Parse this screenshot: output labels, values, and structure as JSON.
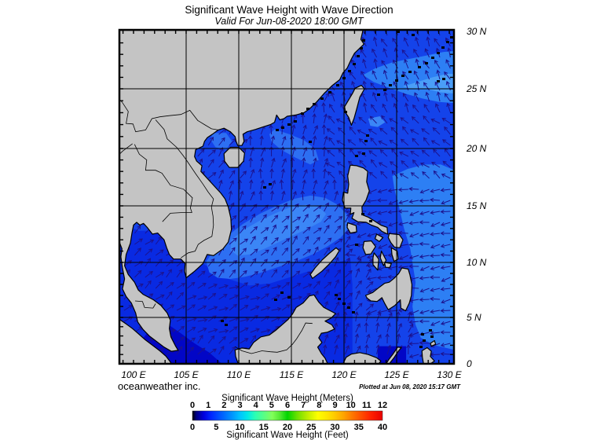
{
  "header": {
    "title": "Significant Wave Height with Wave Direction",
    "subtitle": "Valid For Jun-08-2020 18:00 GMT"
  },
  "footer": {
    "credit": "oceanweather inc.",
    "plotted": "Plotted at Jun 08, 2020 15:17 GMT"
  },
  "axes": {
    "x_tick_labels": [
      "100 E",
      "105 E",
      "110 E",
      "115 E",
      "120 E",
      "125 E",
      "130 E"
    ],
    "x_tick_lons": [
      100,
      105,
      110,
      115,
      120,
      125,
      130
    ],
    "y_tick_labels": [
      "30 N",
      "25 N",
      "20 N",
      "15 N",
      "10 N",
      "5 N",
      "0"
    ],
    "y_tick_lats": [
      30,
      25,
      20,
      15,
      10,
      5,
      0
    ],
    "grid_lons": [
      105,
      110,
      115,
      120,
      125
    ],
    "grid_lats": [
      5,
      10,
      15,
      20,
      25
    ]
  },
  "legend": {
    "meters_label": "Significant Wave Height (Meters)",
    "feet_label": "Significant Wave Height (Feet)",
    "meters_ticks": [
      0,
      1,
      2,
      3,
      4,
      5,
      6,
      7,
      8,
      9,
      10,
      11,
      12
    ],
    "feet_ticks": [
      0,
      5,
      10,
      15,
      20,
      25,
      30,
      35,
      40
    ]
  },
  "colors": {
    "land": "#c4c4c4",
    "coastline": "#000000",
    "ocean_base": "#1443ea",
    "ocean_bright": "#092ae2",
    "ocean_dark": "#0206c6",
    "ocean_light": "#2d6ff2",
    "ocean_mlight": "#3b86f6",
    "ocean_pacific_light": "#2d7ff4",
    "ocean_lightest": "#4a9ef7",
    "arrow": "#1c128e",
    "grid": "#000000",
    "plotted_text": "#0000bb"
  },
  "colorbar_stops": [
    [
      0,
      "#000000"
    ],
    [
      2,
      "#000080"
    ],
    [
      6,
      "#0000e0"
    ],
    [
      10,
      "#0028ff"
    ],
    [
      16,
      "#0064ff"
    ],
    [
      21,
      "#0096ff"
    ],
    [
      25,
      "#00c3ff"
    ],
    [
      29,
      "#00e8e8"
    ],
    [
      33,
      "#2affb4"
    ],
    [
      38,
      "#5cff82"
    ],
    [
      42,
      "#82ff5a"
    ],
    [
      46,
      "#52e932"
    ],
    [
      50,
      "#00d500"
    ],
    [
      55,
      "#6ae000"
    ],
    [
      60,
      "#b7ec00"
    ],
    [
      66,
      "#ffff00"
    ],
    [
      71,
      "#ffe400"
    ],
    [
      75,
      "#ffc800"
    ],
    [
      80,
      "#ffa000"
    ],
    [
      84,
      "#ff7800"
    ],
    [
      89,
      "#ff4c00"
    ],
    [
      94,
      "#ff2000"
    ],
    [
      100,
      "#e80000"
    ]
  ],
  "chart_data": {
    "type": "map",
    "title": "Significant Wave Height with Wave Direction",
    "valid_time": "Jun-08-2020 18:00 GMT",
    "plotted_time": "Jun 08, 2020 15:17 GMT",
    "region": "South China Sea and Western Pacific",
    "lon_range_deg_e": [
      98.7,
      130.5
    ],
    "lat_range_deg_n": [
      0,
      30.1
    ],
    "grid_interval_deg": 5,
    "colorbar_range_m": [
      0,
      12
    ],
    "colorbar_range_ft": [
      0,
      40
    ],
    "arrow_grid_spacing_deg": 1,
    "wave_height_bands": [
      {
        "color_key": "ocean_dark",
        "height_m": "0.5-1.0",
        "areas": "Strait of Malacca / Karimata Strait; Molucca Sea"
      },
      {
        "color_key": "ocean_bright",
        "height_m": "1.0-1.5",
        "areas": "southern South China Sea, Gulf of Thailand, Andaman coast"
      },
      {
        "color_key": "ocean_base",
        "height_m": "~1.5",
        "areas": "northern South China Sea, coastal Philippine Sea, Sulu and Celebes Seas, East China Sea"
      },
      {
        "color_key": "ocean_light",
        "height_m": "1.5-2.0",
        "areas": "central South China Sea band from Mekong Delta toward Luzon; tongue off south China coast; northern Gulf of Tonkin"
      },
      {
        "color_key": "ocean_mlight",
        "height_m": "~2.0",
        "areas": "core of central South China Sea band; patch east of Taiwan"
      },
      {
        "color_key": "ocean_pacific_light",
        "height_m": "2.0-2.5",
        "areas": "open Philippine Sea east of 125E; Ryukyu Islands area"
      },
      {
        "color_key": "ocean_lightest",
        "height_m": "~2.5",
        "areas": "Philippine Sea near 25N-26N east of 126E"
      }
    ],
    "shade_regions": [
      {
        "name": "southern-scs-bright",
        "color_key": "ocean_bright",
        "points": [
          [
            98.66,
            13.8
          ],
          [
            99.5,
            13.2
          ],
          [
            100.5,
            12.8
          ],
          [
            101.5,
            12.8
          ],
          [
            102.5,
            12.5
          ],
          [
            104,
            11.5
          ],
          [
            106,
            10.3
          ],
          [
            107.5,
            9.3
          ],
          [
            109,
            8.5
          ],
          [
            111,
            7.9
          ],
          [
            113,
            8.1
          ],
          [
            115,
            8.7
          ],
          [
            117,
            9.3
          ],
          [
            119,
            9.9
          ],
          [
            120.6,
            10.3
          ],
          [
            120.8,
            8
          ],
          [
            120.8,
            0
          ],
          [
            98.66,
            0
          ]
        ]
      },
      {
        "name": "malacca-dark",
        "color_key": "ocean_dark",
        "points": [
          [
            102.4,
            4.8
          ],
          [
            103.6,
            4
          ],
          [
            104.6,
            3.2
          ],
          [
            105.8,
            2.2
          ],
          [
            107.2,
            1.2
          ],
          [
            108.4,
            0
          ],
          [
            99.5,
            0
          ],
          [
            100,
            1.5
          ],
          [
            100.8,
            2.6
          ],
          [
            101.6,
            3.7
          ]
        ]
      },
      {
        "name": "molucca-dark",
        "color_key": "ocean_dark",
        "points": [
          [
            123.2,
            1.9
          ],
          [
            125.9,
            1.9
          ],
          [
            125.9,
            0
          ],
          [
            123.2,
            0
          ]
        ]
      },
      {
        "name": "central-band-light",
        "color_key": "ocean_light",
        "points": [
          [
            106.9,
            10.1
          ],
          [
            107.9,
            11.4
          ],
          [
            109,
            12.4
          ],
          [
            110.4,
            13.4
          ],
          [
            112,
            14.3
          ],
          [
            113.6,
            15
          ],
          [
            115.2,
            15.6
          ],
          [
            116.8,
            15.9
          ],
          [
            118.2,
            15.7
          ],
          [
            119.4,
            15.1
          ],
          [
            120.3,
            14.2
          ],
          [
            120.5,
            13.1
          ],
          [
            119.7,
            12.2
          ],
          [
            118.4,
            11.4
          ],
          [
            117,
            10.7
          ],
          [
            115.4,
            10.1
          ],
          [
            113.8,
            9.6
          ],
          [
            112.2,
            9.1
          ],
          [
            110.6,
            8.7
          ],
          [
            109.2,
            8.5
          ],
          [
            108,
            8.6
          ],
          [
            107.2,
            9.1
          ]
        ]
      },
      {
        "name": "central-band-core",
        "color_key": "ocean_mlight",
        "points": [
          [
            109.3,
            12
          ],
          [
            110.5,
            12.9
          ],
          [
            112,
            13.7
          ],
          [
            113.6,
            14.4
          ],
          [
            115,
            14.9
          ],
          [
            116.4,
            15.1
          ],
          [
            117.6,
            14.9
          ],
          [
            118.3,
            14.3
          ],
          [
            117.8,
            13.6
          ],
          [
            116.6,
            13
          ],
          [
            115.2,
            12.4
          ],
          [
            113.8,
            11.8
          ],
          [
            112.4,
            11.2
          ],
          [
            111,
            10.7
          ],
          [
            109.9,
            10.6
          ],
          [
            109.2,
            11.1
          ]
        ]
      },
      {
        "name": "nscs-tongue",
        "color_key": "ocean_light",
        "points": [
          [
            113.4,
            21.6
          ],
          [
            114.8,
            21.2
          ],
          [
            116.2,
            20.7
          ],
          [
            117.3,
            19.9
          ],
          [
            117.6,
            19
          ],
          [
            116.8,
            18.6
          ],
          [
            115.4,
            19.2
          ],
          [
            114,
            19.9
          ],
          [
            113.1,
            20.6
          ],
          [
            112.9,
            21.2
          ]
        ]
      },
      {
        "name": "tonkin-patch",
        "color_key": "ocean_light",
        "points": [
          [
            107.5,
            21.3
          ],
          [
            108.8,
            21.3
          ],
          [
            109.35,
            20.6
          ],
          [
            108.8,
            19.9
          ],
          [
            107.8,
            20.1
          ],
          [
            107.35,
            20.7
          ]
        ]
      },
      {
        "name": "pacific-light",
        "color_key": "ocean_pacific_light",
        "points": [
          [
            124.6,
            17.6
          ],
          [
            126,
            18.2
          ],
          [
            127.6,
            18.6
          ],
          [
            129.2,
            18.6
          ],
          [
            130.5,
            18.1
          ],
          [
            130.5,
            1.5
          ],
          [
            128.6,
            2
          ],
          [
            127.3,
            2.8
          ],
          [
            126.8,
            4.2
          ],
          [
            126.5,
            6
          ],
          [
            126.8,
            8.2
          ],
          [
            126.3,
            11.2
          ],
          [
            125.7,
            13
          ],
          [
            125.2,
            15
          ],
          [
            124.8,
            16.4
          ]
        ]
      },
      {
        "name": "ryukyu-light",
        "color_key": "ocean_pacific_light",
        "points": [
          [
            121.8,
            26.2
          ],
          [
            123,
            26.8
          ],
          [
            124.6,
            27.3
          ],
          [
            126.2,
            27.6
          ],
          [
            127.8,
            27.9
          ],
          [
            129.4,
            28.2
          ],
          [
            130.5,
            28.3
          ],
          [
            130.5,
            23.8
          ],
          [
            129,
            23.9
          ],
          [
            127.4,
            24.2
          ],
          [
            125.8,
            24.6
          ],
          [
            124.2,
            25.1
          ],
          [
            122.8,
            25.6
          ]
        ]
      },
      {
        "name": "ryukyu-lightest",
        "color_key": "ocean_lightest",
        "points": [
          [
            125.6,
            25.2
          ],
          [
            127,
            25.6
          ],
          [
            128.4,
            26
          ],
          [
            129.8,
            26.3
          ],
          [
            130.5,
            26.3
          ],
          [
            130.5,
            24.6
          ],
          [
            129.2,
            24.7
          ],
          [
            127.8,
            25
          ],
          [
            126.4,
            25
          ]
        ]
      },
      {
        "name": "taiwan-east-patch",
        "color_key": "ocean_mlight",
        "points": [
          [
            122.3,
            22.5
          ],
          [
            123.4,
            22.7
          ],
          [
            123.9,
            22.2
          ],
          [
            123.2,
            21.8
          ],
          [
            122.5,
            21.9
          ]
        ]
      }
    ],
    "arrow_field": [
      {
        "region": "Gulf of Tonkin",
        "lon": [
          104.5,
          110.2
        ],
        "lat": [
          16.5,
          22
        ],
        "dir_deg": 52
      },
      {
        "region": "East China Sea / Ryukyu",
        "lon": [
          119,
          130.5
        ],
        "lat": [
          23,
          30.2
        ],
        "dir_deg": 115
      },
      {
        "region": "Luzon Strait / N Philippine Sea",
        "lon": [
          119,
          130.5
        ],
        "lat": [
          17,
          23
        ],
        "dir_deg": 140
      },
      {
        "region": "Celebes Sea",
        "lon": [
          117,
          127
        ],
        "lat": [
          0,
          5.5
        ],
        "dir_deg": 75
      },
      {
        "region": "Sulu Sea",
        "lon": [
          117,
          122.5
        ],
        "lat": [
          5.5,
          10
        ],
        "dir_deg": 55
      },
      {
        "region": "Philippine Sea trades",
        "lon": [
          121,
          130.5
        ],
        "lat": [
          0,
          17
        ],
        "dir_deg": 190
      },
      {
        "region": "N South China Sea",
        "lon": [
          105,
          121
        ],
        "lat": [
          15,
          23.5
        ],
        "dir_deg": 80
      },
      {
        "region": "Central South China Sea",
        "lon": [
          104,
          121
        ],
        "lat": [
          8,
          15
        ],
        "dir_deg": 48
      },
      {
        "region": "Gulf of Thailand",
        "lon": [
          98.6,
          104.5
        ],
        "lat": [
          5.5,
          14
        ],
        "dir_deg": 42
      },
      {
        "region": "S South China Sea",
        "lon": [
          98.6,
          118
        ],
        "lat": [
          3,
          8
        ],
        "dir_deg": 25
      },
      {
        "region": "Equatorial",
        "lon": [
          98.6,
          130.5
        ],
        "lat": [
          0,
          3
        ],
        "dir_deg": 45
      },
      {
        "region": "default",
        "lon": [
          98.6,
          130.5
        ],
        "lat": [
          0,
          30.2
        ],
        "dir_deg": 60
      }
    ]
  }
}
